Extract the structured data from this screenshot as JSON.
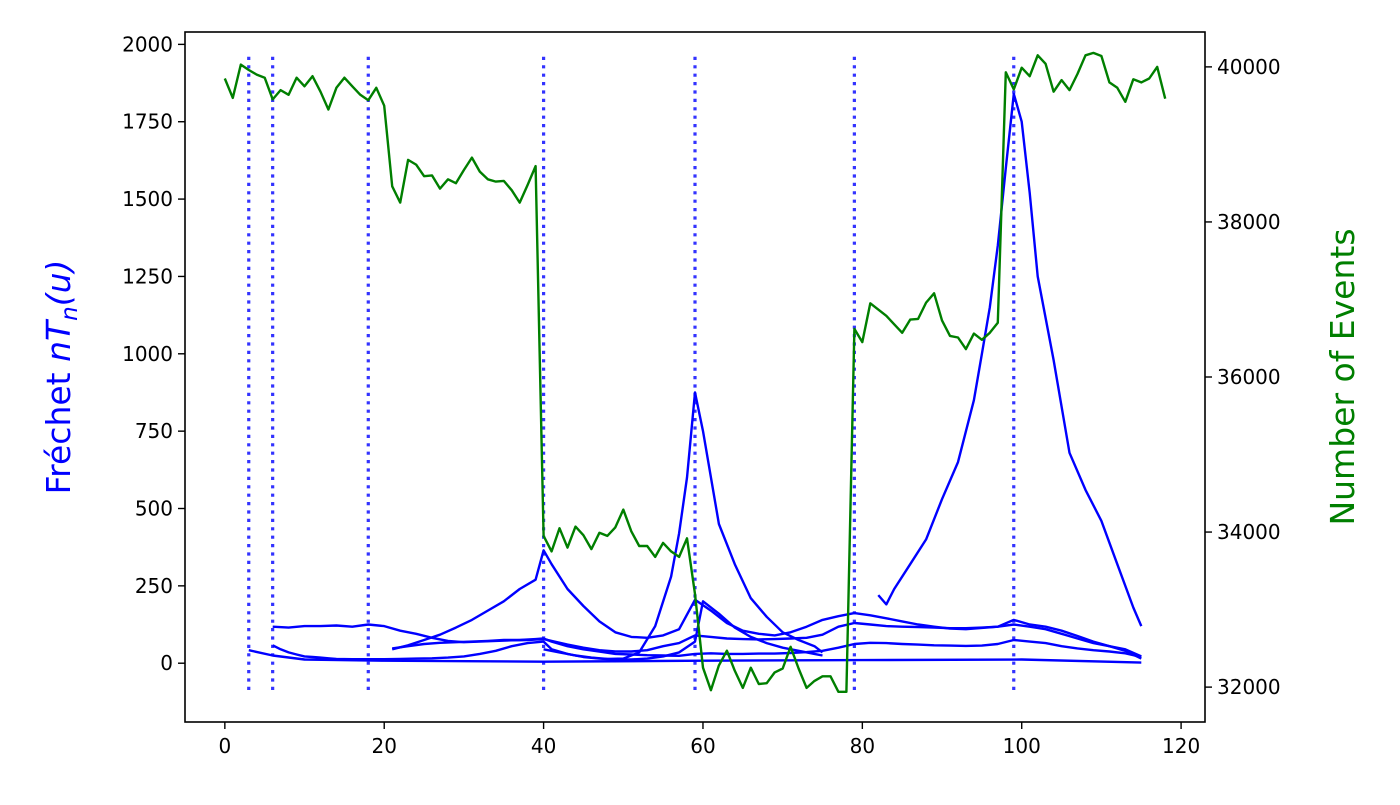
{
  "chart_data": {
    "type": "line",
    "ylabel_left": "Fréchet nT_n(u)",
    "ylabel_left_parts": {
      "prefix": "Fréchet ",
      "n": "n",
      "T": "T",
      "sub": "n",
      "arg": "(u)"
    },
    "ylabel_right": "Number of Events",
    "xlim": [
      -5,
      123
    ],
    "ylim_left": [
      -190,
      2040
    ],
    "ylim_right": [
      31550,
      40450
    ],
    "x_ticks": [
      "0",
      "20",
      "40",
      "60",
      "80",
      "100",
      "120"
    ],
    "y_left_ticks": [
      "0",
      "250",
      "500",
      "750",
      "1000",
      "1250",
      "1500",
      "1750",
      "2000"
    ],
    "y_right_ticks": [
      "32000",
      "34000",
      "36000",
      "38000",
      "40000"
    ],
    "colors": {
      "frechet": "#0000ff",
      "events": "#007f00",
      "changepoints": "#3333ff"
    },
    "changepoints": [
      3,
      6,
      18,
      40,
      59,
      79,
      99
    ],
    "events_series": {
      "name": "Number of Events",
      "x": [
        0,
        1,
        2,
        3,
        4,
        5,
        6,
        7,
        8,
        9,
        10,
        11,
        12,
        13,
        14,
        15,
        16,
        17,
        18,
        19,
        20,
        21,
        22,
        23,
        24,
        25,
        26,
        27,
        28,
        29,
        30,
        31,
        32,
        33,
        34,
        35,
        36,
        37,
        38,
        39,
        40,
        41,
        42,
        43,
        44,
        45,
        46,
        47,
        48,
        49,
        50,
        51,
        52,
        53,
        54,
        55,
        56,
        57,
        58,
        59,
        60,
        61,
        62,
        63,
        64,
        65,
        66,
        67,
        68,
        69,
        70,
        71,
        72,
        73,
        74,
        75,
        76,
        77,
        78,
        79,
        80,
        81,
        82,
        83,
        84,
        85,
        86,
        87,
        88,
        89,
        90,
        91,
        92,
        93,
        94,
        95,
        96,
        97,
        98,
        99,
        100,
        101,
        102,
        103,
        104,
        105,
        106,
        107,
        108,
        109,
        110,
        111,
        112,
        113,
        114,
        115,
        116,
        117,
        118
      ],
      "y": [
        39850,
        39600,
        40030,
        39960,
        39900,
        39860,
        39580,
        39700,
        39640,
        39860,
        39750,
        39880,
        39680,
        39450,
        39730,
        39860,
        39750,
        39640,
        39570,
        39730,
        39500,
        38460,
        38250,
        38800,
        38740,
        38590,
        38600,
        38430,
        38550,
        38500,
        38670,
        38830,
        38650,
        38550,
        38520,
        38530,
        38410,
        38250,
        38480,
        38720,
        33950,
        33750,
        34050,
        33800,
        34070,
        33960,
        33780,
        33990,
        33950,
        34060,
        34290,
        34010,
        33820,
        33820,
        33680,
        33860,
        33750,
        33680,
        33920,
        33200,
        32250,
        31960,
        32280,
        32470,
        32210,
        31990,
        32250,
        32040,
        32050,
        32190,
        32240,
        32520,
        32240,
        31990,
        32080,
        32140,
        32140,
        31940,
        31940,
        36620,
        36450,
        36950,
        36870,
        36790,
        36680,
        36570,
        36740,
        36750,
        36960,
        37080,
        36730,
        36530,
        36510,
        36360,
        36560,
        36480,
        36570,
        36700,
        39930,
        39710,
        39990,
        39880,
        40150,
        40040,
        39680,
        39830,
        39700,
        39910,
        40150,
        40180,
        40140,
        39800,
        39730,
        39550,
        39840,
        39800,
        39850,
        40000,
        39590
      ]
    },
    "frechet_series": [
      {
        "x": [
          3,
          6,
          10,
          20,
          40,
          60,
          80,
          100,
          115
        ],
        "y": [
          42,
          25,
          12,
          8,
          5,
          8,
          10,
          12,
          2
        ]
      },
      {
        "x": [
          6,
          7,
          8,
          9,
          10,
          11,
          12,
          13,
          14,
          16,
          18,
          20,
          22,
          24,
          26,
          28,
          30,
          32,
          34,
          36,
          38,
          40,
          41,
          43,
          45,
          47,
          49,
          51,
          53,
          55,
          57,
          59,
          60,
          62,
          64,
          66,
          68,
          70,
          72,
          74,
          75
        ],
        "y": [
          58,
          45,
          35,
          28,
          22,
          20,
          18,
          16,
          14,
          13,
          13,
          13,
          14,
          15,
          16,
          18,
          22,
          30,
          40,
          55,
          65,
          70,
          45,
          30,
          20,
          15,
          12,
          12,
          15,
          22,
          35,
          70,
          200,
          160,
          115,
          85,
          65,
          50,
          40,
          30,
          25
        ]
      },
      {
        "x": [
          21,
          23,
          25,
          27,
          29,
          31,
          33,
          35,
          37,
          39,
          40,
          41,
          43,
          45,
          47,
          49,
          51,
          53,
          55,
          57,
          59,
          61,
          63,
          65,
          67,
          69,
          71,
          73,
          75,
          77,
          79,
          81,
          83,
          85,
          87,
          89,
          91,
          93,
          95,
          97,
          99,
          101,
          103,
          105,
          107,
          109,
          111,
          113,
          115
        ],
        "y": [
          48,
          55,
          62,
          66,
          68,
          70,
          72,
          75,
          75,
          78,
          80,
          70,
          55,
          45,
          38,
          30,
          28,
          26,
          25,
          24,
          30,
          32,
          30,
          30,
          31,
          31,
          33,
          36,
          40,
          50,
          62,
          66,
          65,
          62,
          60,
          58,
          57,
          56,
          57,
          62,
          75,
          70,
          65,
          55,
          48,
          42,
          38,
          32,
          20
        ]
      },
      {
        "x": [
          6,
          8,
          10,
          12,
          14,
          16,
          18,
          20,
          22,
          24,
          26,
          28,
          30,
          32,
          34,
          36,
          38,
          40,
          41,
          43,
          45,
          47,
          49,
          51,
          53,
          55,
          57,
          59,
          61,
          63,
          65,
          67,
          69,
          71,
          73,
          75,
          77,
          79,
          81,
          83,
          85,
          87,
          89,
          91,
          93,
          95,
          97,
          99,
          101,
          103,
          105,
          107,
          109,
          111,
          113,
          115
        ],
        "y": [
          118,
          115,
          120,
          120,
          122,
          118,
          125,
          120,
          105,
          95,
          82,
          72,
          68,
          70,
          72,
          74,
          75,
          78,
          72,
          60,
          50,
          42,
          38,
          38,
          42,
          55,
          65,
          90,
          85,
          80,
          78,
          77,
          78,
          80,
          82,
          92,
          118,
          130,
          125,
          120,
          118,
          117,
          115,
          113,
          113,
          115,
          118,
          125,
          118,
          110,
          95,
          80,
          65,
          55,
          45,
          22
        ]
      },
      {
        "x": [
          21,
          23,
          25,
          27,
          29,
          31,
          33,
          35,
          37,
          39,
          40,
          41,
          43,
          45,
          47,
          49,
          51,
          53,
          55,
          57,
          59,
          61,
          63,
          65,
          67,
          69,
          71,
          73,
          75,
          77,
          79,
          81,
          83,
          85,
          87,
          89,
          91,
          93,
          95,
          97,
          99,
          101,
          103,
          105,
          107,
          109,
          111,
          113,
          115
        ],
        "y": [
          45,
          58,
          75,
          92,
          115,
          140,
          170,
          200,
          240,
          270,
          365,
          320,
          240,
          185,
          135,
          100,
          85,
          82,
          90,
          110,
          205,
          170,
          130,
          105,
          95,
          90,
          100,
          118,
          140,
          152,
          162,
          155,
          145,
          135,
          125,
          118,
          112,
          110,
          114,
          118,
          140,
          125,
          118,
          105,
          88,
          70,
          55,
          40,
          15
        ]
      },
      {
        "x": [
          40,
          42,
          44,
          46,
          48,
          50,
          52,
          54,
          56,
          57,
          58,
          59,
          60,
          62,
          64,
          66,
          68,
          70,
          72,
          74,
          75
        ],
        "y": [
          45,
          35,
          25,
          18,
          14,
          15,
          35,
          120,
          280,
          420,
          600,
          875,
          750,
          450,
          320,
          210,
          150,
          100,
          75,
          55,
          35
        ]
      },
      {
        "x": [
          82,
          83,
          84,
          86,
          88,
          90,
          92,
          94,
          95,
          96,
          97,
          98,
          99,
          100,
          101,
          102,
          104,
          106,
          108,
          110,
          112,
          114,
          115
        ],
        "y": [
          220,
          190,
          240,
          320,
          400,
          530,
          650,
          850,
          1000,
          1150,
          1350,
          1600,
          1840,
          1750,
          1520,
          1250,
          980,
          680,
          560,
          460,
          320,
          180,
          120
        ]
      }
    ]
  }
}
